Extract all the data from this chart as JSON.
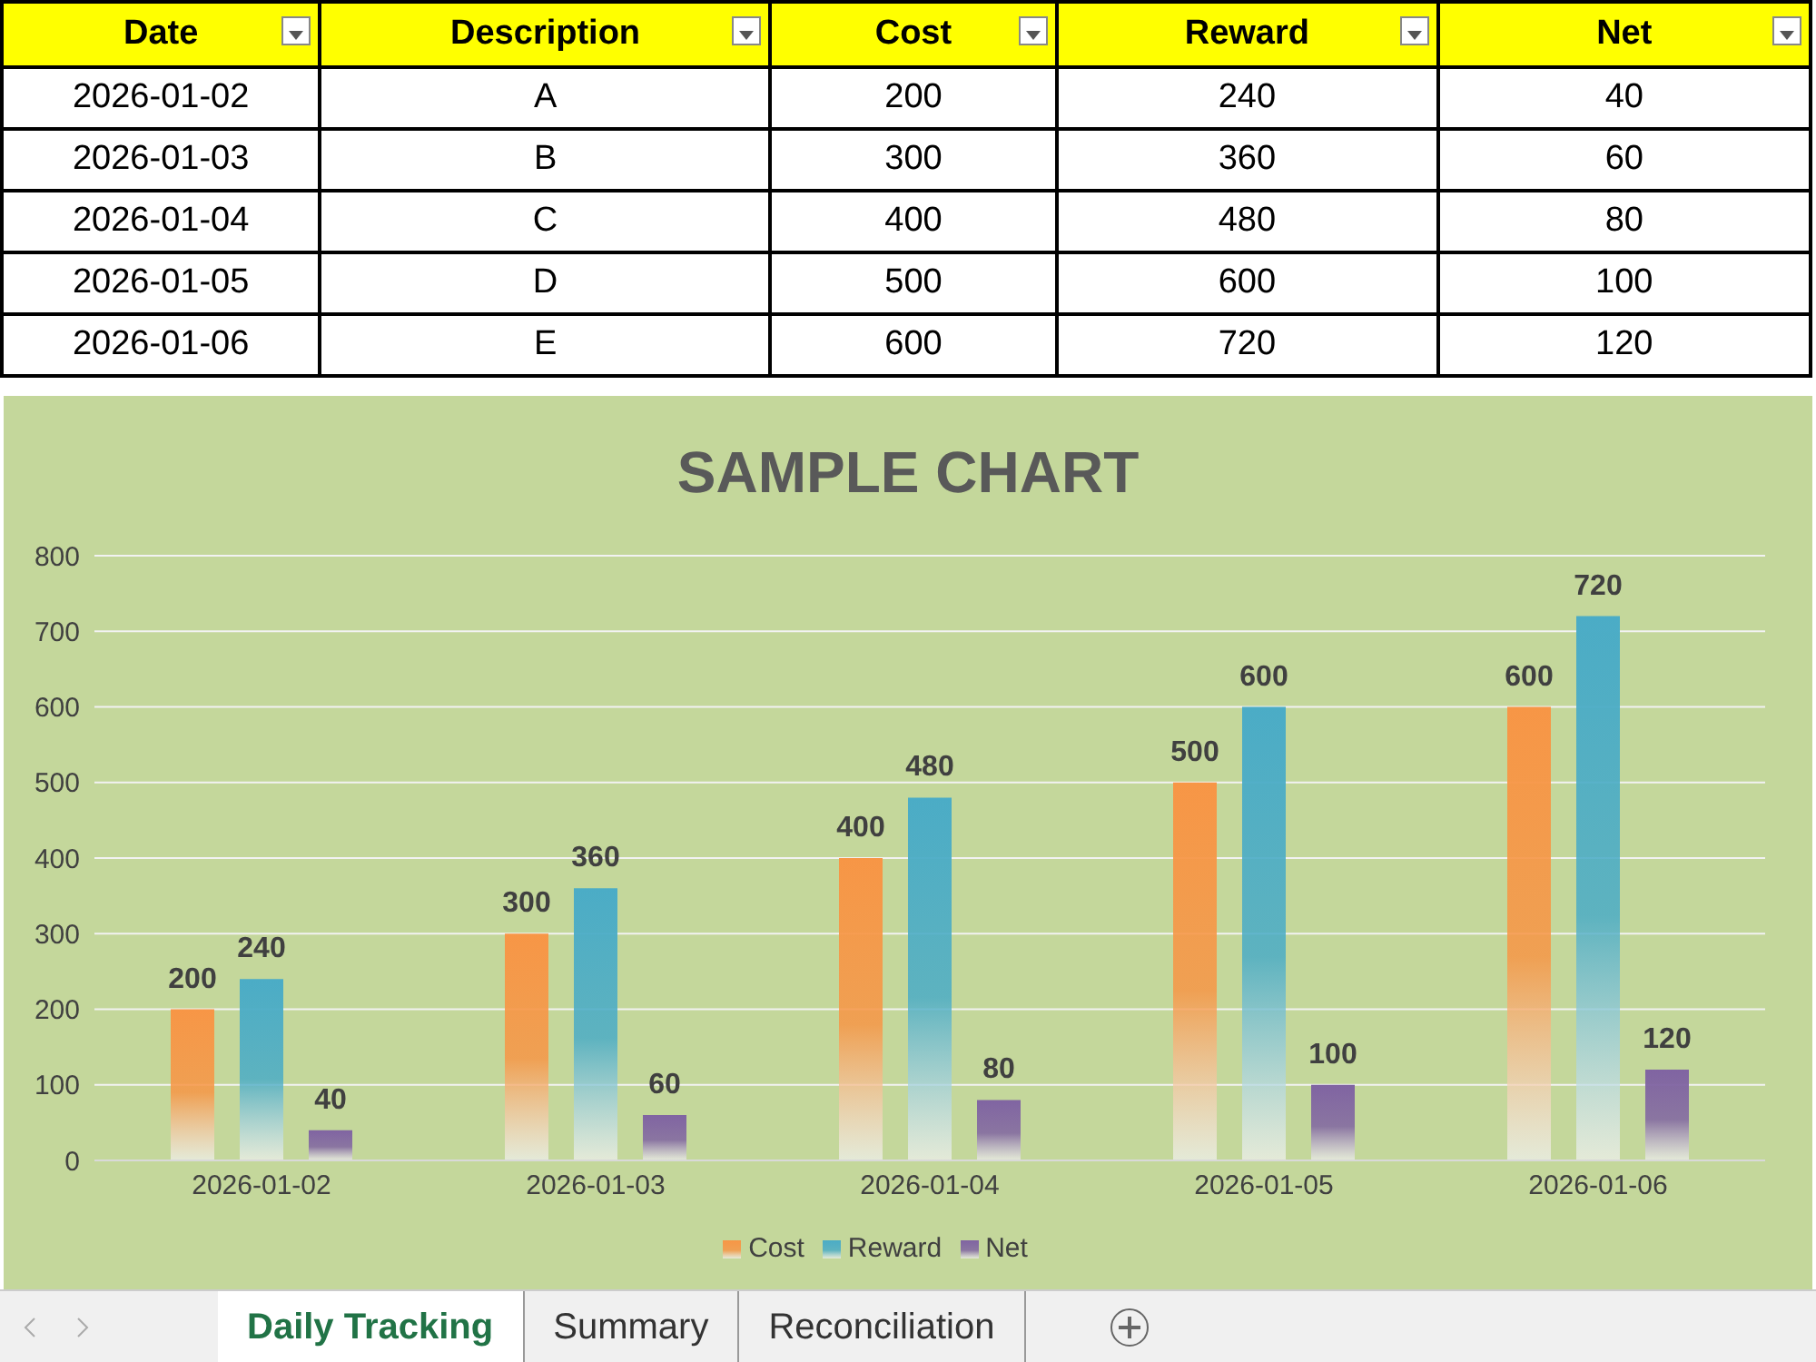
{
  "chart_data": {
    "type": "bar",
    "title": "SAMPLE CHART",
    "categories": [
      "2026-01-02",
      "2026-01-03",
      "2026-01-04",
      "2026-01-05",
      "2026-01-06"
    ],
    "series": [
      {
        "name": "Cost",
        "color": "#f79646",
        "values": [
          200,
          300,
          400,
          500,
          600
        ],
        "value_labels": [
          "200",
          "300",
          "400",
          "500",
          "600"
        ]
      },
      {
        "name": "Reward",
        "color": "#4bacc6",
        "values": [
          240,
          360,
          480,
          600,
          720
        ],
        "value_labels": [
          "240",
          "360",
          "480",
          "600",
          "720"
        ]
      },
      {
        "name": "Net",
        "color": "#8064a2",
        "values": [
          40,
          60,
          80,
          100,
          120
        ],
        "value_labels": [
          "40",
          "60",
          "80",
          "100",
          "120"
        ]
      }
    ],
    "ylim": [
      0,
      800
    ],
    "yticks": [
      0,
      100,
      200,
      300,
      400,
      500,
      600,
      700,
      800
    ],
    "grid": "y",
    "legend": "bottom",
    "annotations": [
      "Date",
      "Description",
      "A",
      "B",
      "C",
      "D",
      "E",
      "Daily Tracking",
      "Summary",
      "Reconciliation"
    ]
  }
}
